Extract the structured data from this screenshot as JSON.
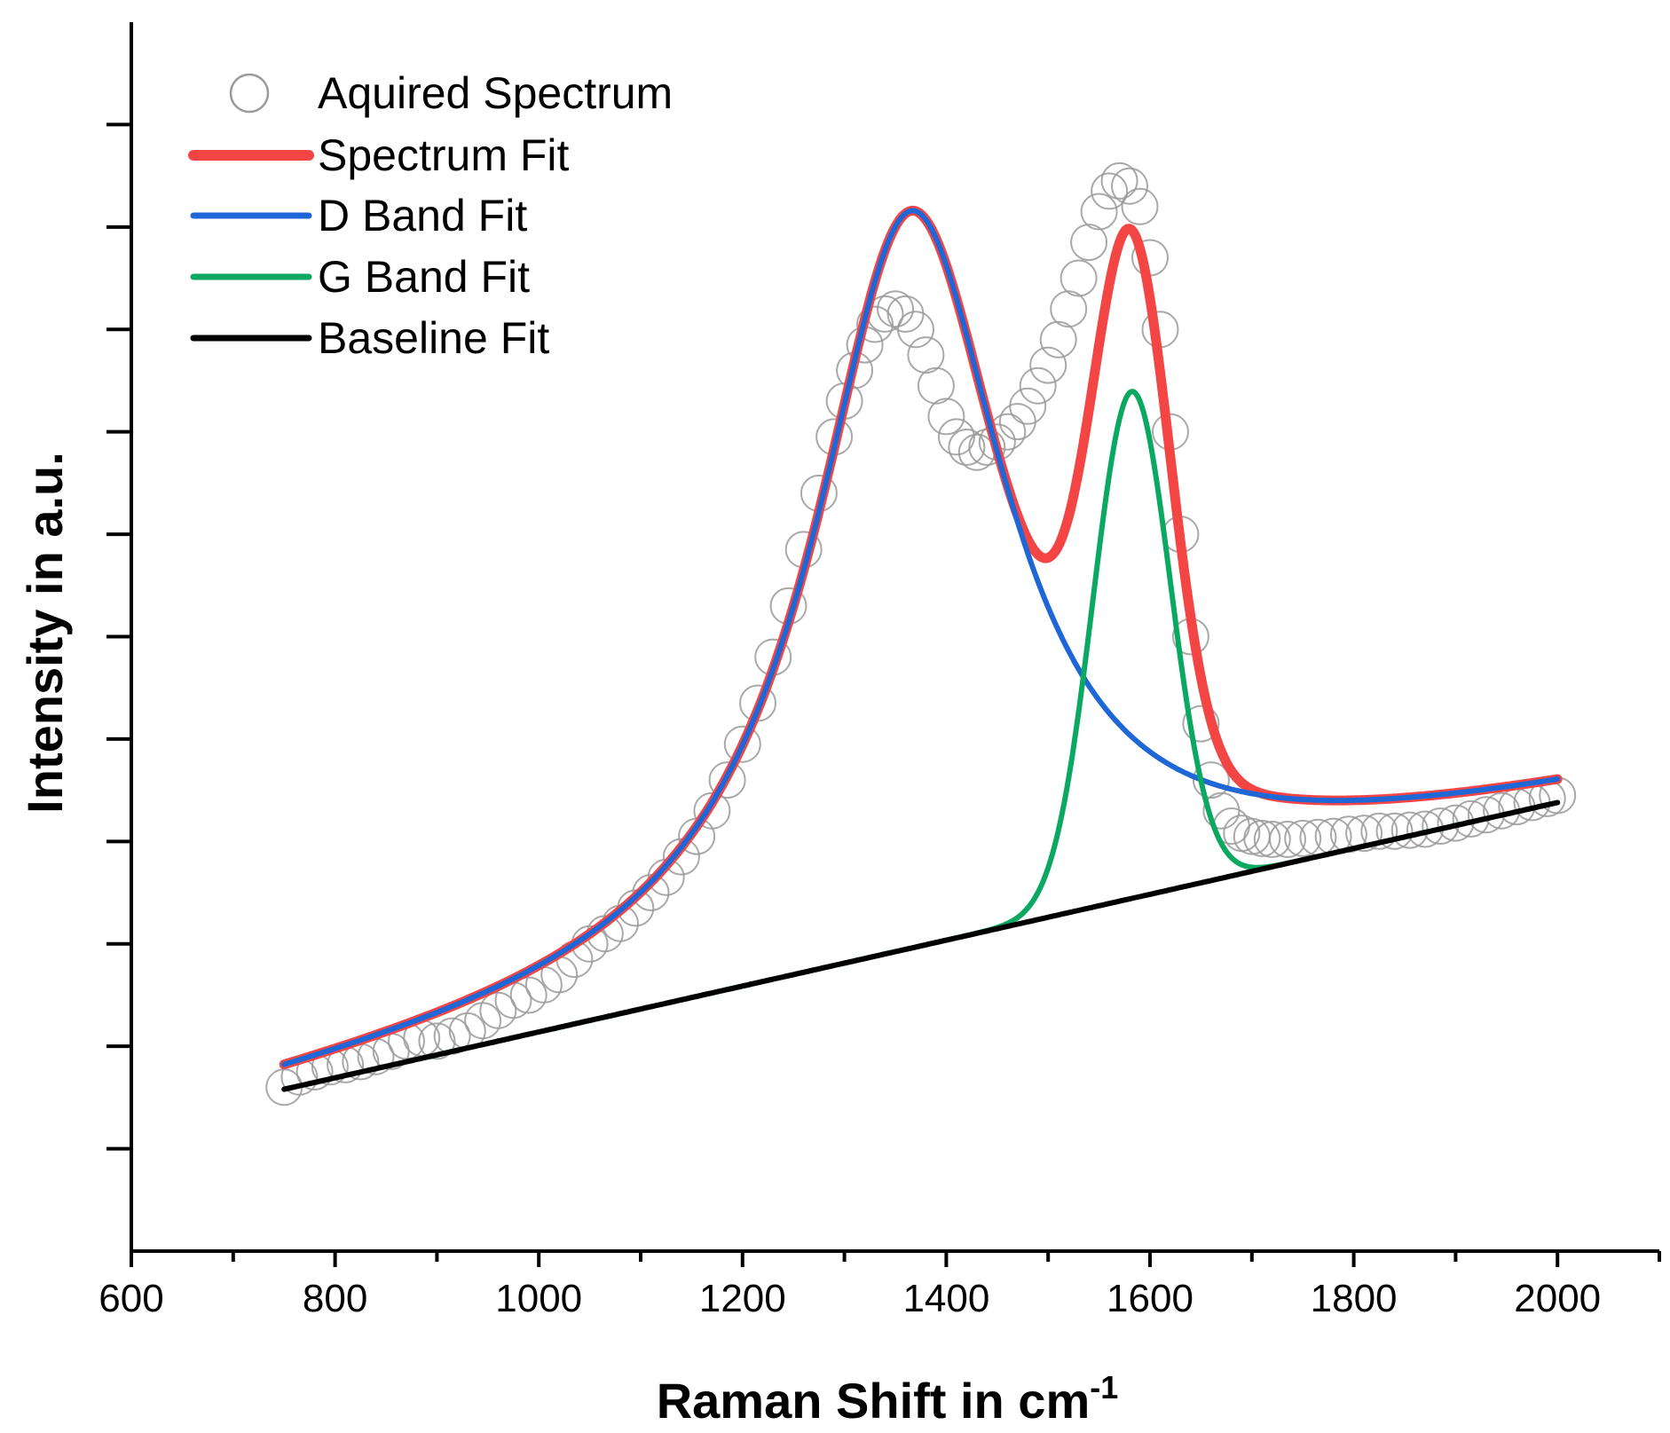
{
  "chart_data": {
    "type": "line",
    "title": "",
    "xlabel": "Raman Shift in cm",
    "xlabel_superscript": "-1",
    "ylabel": "Intensity in a.u.",
    "xlim": [
      600,
      2100
    ],
    "ylim": [
      0,
      12
    ],
    "x_ticks": [
      600,
      800,
      1000,
      1200,
      1400,
      1600,
      1800,
      2000
    ],
    "x_minor_step": 100,
    "y_ticks": [
      1,
      2,
      3,
      4,
      5,
      6,
      7,
      8,
      9,
      10,
      11
    ],
    "y_tick_labels_shown": false,
    "grid": false,
    "legend_position": "top-left",
    "series": [
      {
        "name": "Aquired Spectrum",
        "style": "open-circle-markers",
        "color": "#9a9a9a",
        "x": [
          750,
          765,
          780,
          795,
          810,
          825,
          840,
          855,
          870,
          885,
          900,
          915,
          930,
          945,
          960,
          975,
          990,
          1005,
          1020,
          1035,
          1050,
          1065,
          1080,
          1095,
          1110,
          1125,
          1140,
          1155,
          1170,
          1185,
          1200,
          1215,
          1230,
          1245,
          1260,
          1275,
          1290,
          1300,
          1310,
          1320,
          1330,
          1340,
          1350,
          1360,
          1370,
          1380,
          1390,
          1400,
          1410,
          1420,
          1430,
          1440,
          1450,
          1460,
          1470,
          1480,
          1490,
          1500,
          1510,
          1520,
          1530,
          1540,
          1550,
          1560,
          1570,
          1580,
          1590,
          1600,
          1610,
          1620,
          1630,
          1640,
          1650,
          1660,
          1670,
          1680,
          1690,
          1700,
          1710,
          1720,
          1735,
          1750,
          1765,
          1780,
          1795,
          1810,
          1825,
          1840,
          1855,
          1870,
          1885,
          1900,
          1915,
          1930,
          1945,
          1960,
          1975,
          1990,
          2000
        ],
        "y": [
          1.6,
          1.7,
          1.75,
          1.8,
          1.82,
          1.85,
          1.9,
          1.95,
          2.05,
          2.08,
          2.05,
          2.1,
          2.15,
          2.25,
          2.35,
          2.45,
          2.5,
          2.6,
          2.7,
          2.85,
          3.0,
          3.1,
          3.2,
          3.35,
          3.5,
          3.65,
          3.85,
          4.05,
          4.3,
          4.6,
          4.95,
          5.35,
          5.8,
          6.3,
          6.85,
          7.4,
          7.95,
          8.3,
          8.6,
          8.85,
          9.05,
          9.15,
          9.2,
          9.15,
          9.0,
          8.75,
          8.45,
          8.15,
          7.95,
          7.85,
          7.8,
          7.85,
          7.9,
          8.0,
          8.1,
          8.25,
          8.45,
          8.65,
          8.9,
          9.2,
          9.5,
          9.85,
          10.15,
          10.35,
          10.45,
          10.4,
          10.2,
          9.7,
          9.0,
          8.0,
          7.0,
          6.0,
          5.15,
          4.6,
          4.3,
          4.15,
          4.08,
          4.05,
          4.03,
          4.02,
          4.02,
          4.03,
          4.04,
          4.05,
          4.07,
          4.08,
          4.1,
          4.1,
          4.11,
          4.12,
          4.15,
          4.18,
          4.22,
          4.26,
          4.3,
          4.34,
          4.38,
          4.42,
          4.45
        ]
      },
      {
        "name": "Spectrum Fit",
        "style": "thick-line",
        "color": "#f44545",
        "model": {
          "baseline": [
            1.58,
            0.00224
          ],
          "d_band": {
            "center": 1365,
            "amplitude": 7.2,
            "hwhm": 115
          },
          "g_band": {
            "center": 1582,
            "amplitude": 4.95,
            "sigma": 38
          }
        }
      },
      {
        "name": "D Band Fit",
        "style": "line",
        "color": "#1f66d6",
        "model": {
          "baseline": [
            1.58,
            0.00224
          ],
          "d_band": {
            "center": 1365,
            "amplitude": 7.2,
            "hwhm": 115
          }
        }
      },
      {
        "name": "G Band Fit",
        "style": "line",
        "color": "#0aa860",
        "model": {
          "baseline": [
            1.58,
            0.00224
          ],
          "g_band": {
            "center": 1582,
            "amplitude": 4.95,
            "sigma": 38
          }
        }
      },
      {
        "name": "Baseline Fit",
        "style": "line",
        "color": "#000000",
        "model": {
          "baseline": [
            1.58,
            0.00224
          ]
        }
      }
    ]
  }
}
